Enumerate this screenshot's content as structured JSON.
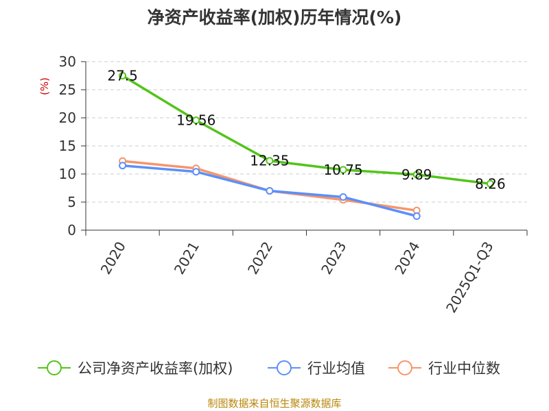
{
  "chart_data": {
    "type": "line",
    "title": "净资产收益率(加权)历年情况(%)",
    "ylabel": "(%)",
    "xlabel": "",
    "ylim": [
      0,
      30
    ],
    "yticks": [
      0,
      5,
      10,
      15,
      20,
      25,
      30
    ],
    "categories": [
      "2020",
      "2021",
      "2022",
      "2023",
      "2024",
      "2025Q1-Q3"
    ],
    "grid": true,
    "legend_position": "bottom",
    "series": [
      {
        "name": "公司净资产收益率(加权)",
        "color": "#52c41a",
        "values": [
          27.5,
          19.56,
          12.35,
          10.75,
          9.89,
          8.26
        ],
        "labels": [
          "27.5",
          "19.56",
          "12.35",
          "10.75",
          "9.89",
          "8.26"
        ]
      },
      {
        "name": "行业均值",
        "color": "#5b8ff9",
        "values": [
          11.5,
          10.4,
          7.0,
          5.9,
          2.5,
          null
        ]
      },
      {
        "name": "行业中位数",
        "color": "#f6956b",
        "values": [
          12.3,
          11.0,
          7.0,
          5.4,
          3.5,
          null
        ]
      }
    ],
    "source": "制图数据来自恒生聚源数据库"
  },
  "colors": {
    "ylabel": "#cc0000",
    "footer": "#b8860b",
    "grid": "#cccccc",
    "axis": "#333333"
  }
}
